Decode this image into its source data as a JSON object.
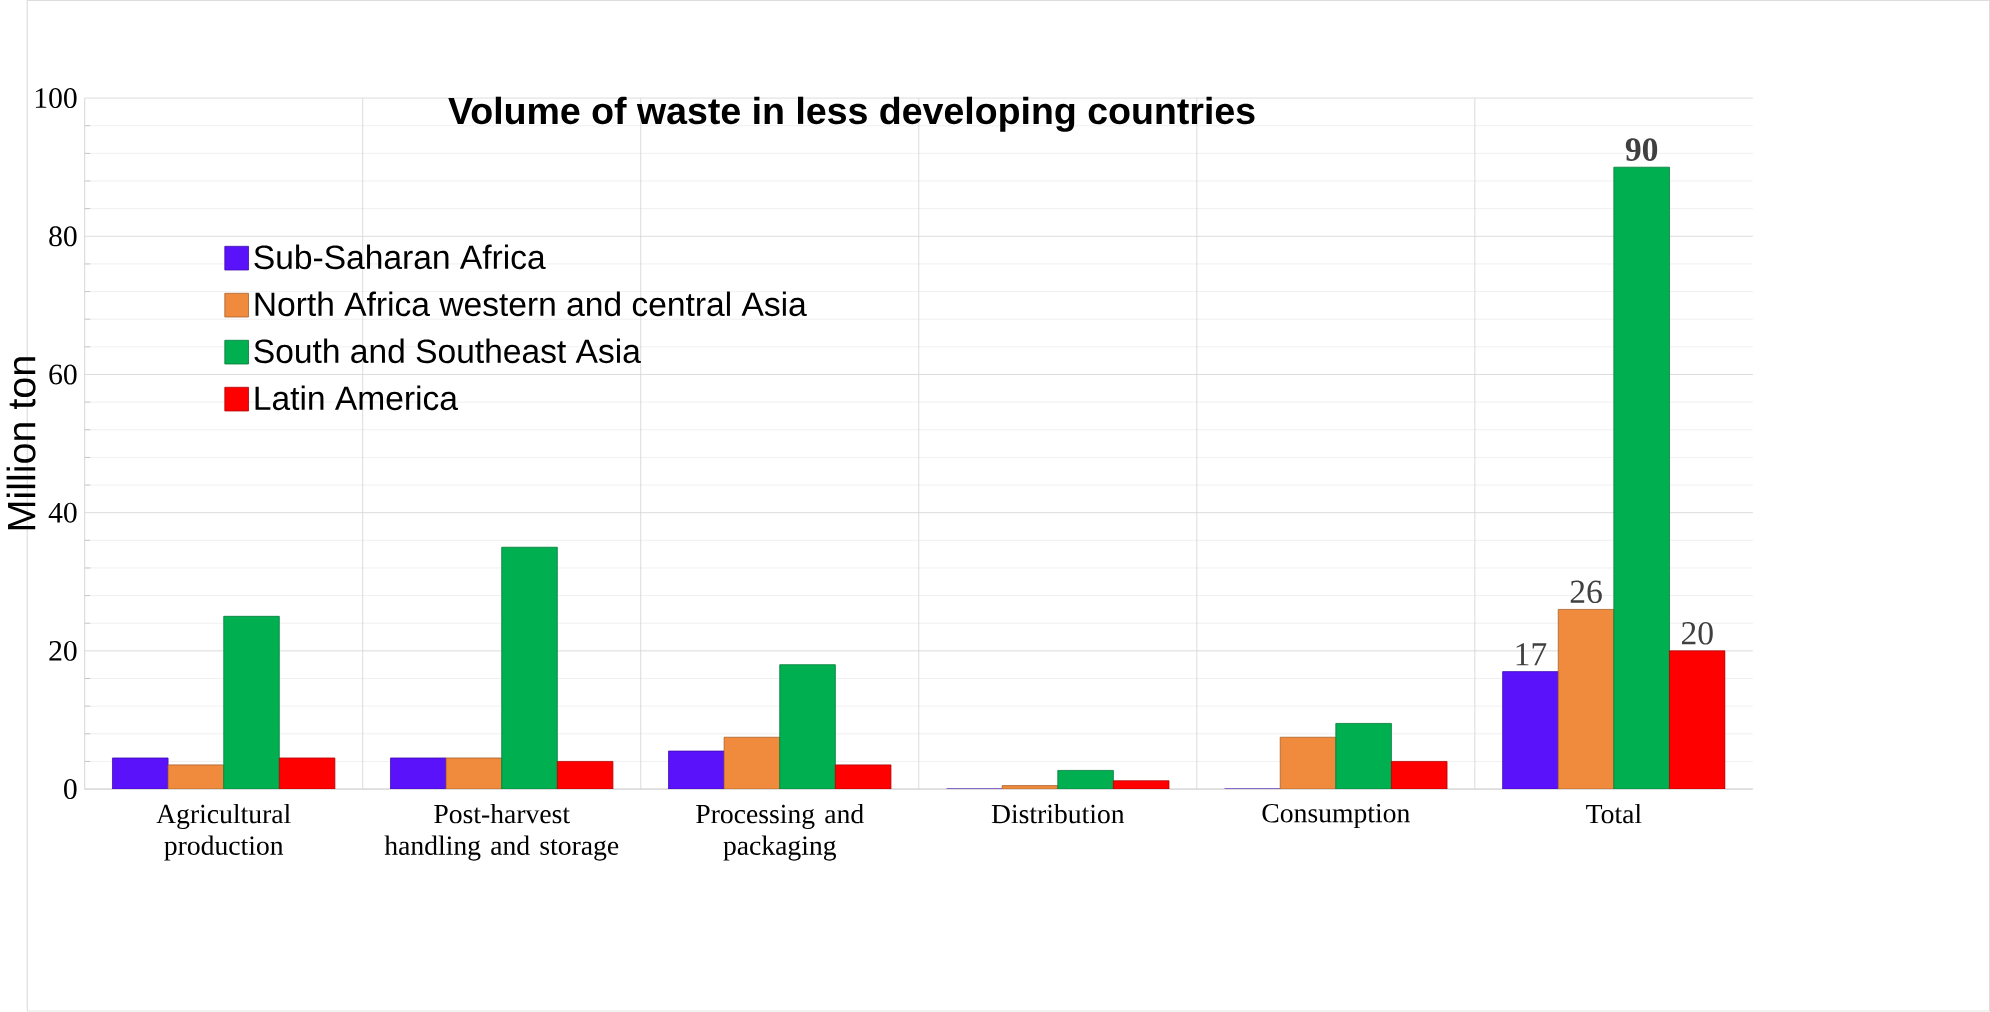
{
  "chart_data": {
    "type": "bar",
    "title": "Volume of waste in less developing countries",
    "ylabel": "Million ton",
    "categories": [
      "Agricultural production",
      "Post-harvest handling and storage",
      "Processing and packaging",
      "Distribution",
      "Consumption",
      "Total"
    ],
    "series": [
      {
        "name": "Sub-Saharan Africa",
        "color": "#5a12fa",
        "values": [
          4.5,
          4.5,
          5.5,
          0,
          0,
          17
        ],
        "value_labels": [
          null,
          null,
          null,
          null,
          null,
          "17"
        ]
      },
      {
        "name": "North Africa western and central Asia",
        "color": "#f08a3c",
        "values": [
          3.5,
          4.5,
          7.5,
          0.5,
          7.5,
          26
        ],
        "value_labels": [
          null,
          null,
          null,
          null,
          null,
          "26"
        ]
      },
      {
        "name": "South and Southeast Asia",
        "color": "#00b050",
        "values": [
          25,
          35,
          18,
          2.7,
          9.5,
          90
        ],
        "value_labels": [
          null,
          null,
          null,
          null,
          null,
          "**90**"
        ]
      },
      {
        "name": "Latin America",
        "color": "#ff0000",
        "values": [
          4.5,
          4,
          3.5,
          1.2,
          4,
          20
        ],
        "value_labels": [
          null,
          null,
          null,
          null,
          null,
          "20"
        ]
      }
    ],
    "ylim": [
      0,
      100
    ],
    "yticks": [
      0,
      20,
      40,
      60,
      80,
      100
    ],
    "grid": true,
    "legend": "top left"
  }
}
